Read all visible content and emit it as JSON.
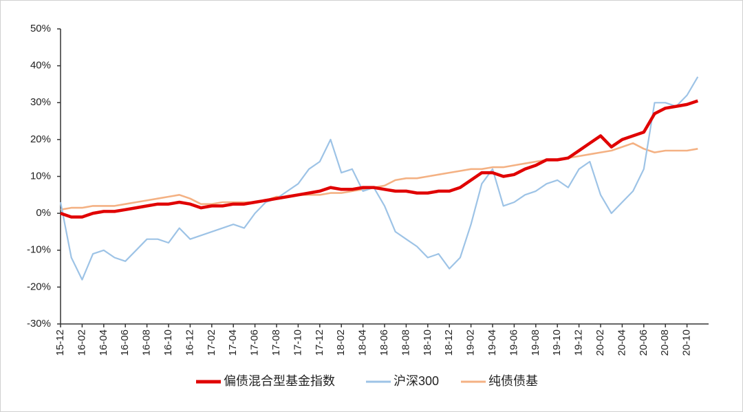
{
  "chart_data": {
    "type": "line",
    "categories": [
      "15-12",
      null,
      "16-02",
      null,
      "16-04",
      null,
      "16-06",
      null,
      "16-08",
      null,
      "16-10",
      null,
      "16-12",
      null,
      "17-02",
      null,
      "17-04",
      null,
      "17-06",
      null,
      "17-08",
      null,
      "17-10",
      null,
      "17-12",
      null,
      "18-02",
      null,
      "18-04",
      null,
      "18-06",
      null,
      "18-08",
      null,
      "18-10",
      null,
      "18-12",
      null,
      "19-02",
      null,
      "19-04",
      null,
      "19-06",
      null,
      "19-08",
      null,
      "19-10",
      null,
      "19-12",
      null,
      "20-02",
      null,
      "20-04",
      null,
      "20-06",
      null,
      "20-08",
      null,
      "20-10",
      null
    ],
    "series": [
      {
        "name": "偏债混合型基金指数",
        "color": "#e00000",
        "values": [
          0,
          -1,
          -1,
          0,
          0.5,
          0.5,
          1,
          1.5,
          2,
          2.5,
          2.5,
          3,
          2.5,
          1.5,
          2,
          2,
          2.5,
          2.5,
          3,
          3.5,
          4,
          4.5,
          5,
          5.5,
          6,
          7,
          6.5,
          6.5,
          7,
          7,
          6.5,
          6,
          6,
          5.5,
          5.5,
          6,
          6,
          7,
          9,
          11,
          11,
          10,
          10.5,
          12,
          13,
          14.5,
          14.5,
          15,
          17,
          19,
          21,
          18,
          20,
          21,
          22,
          27,
          28.5,
          29,
          29.5,
          30.5
        ]
      },
      {
        "name": "沪深300",
        "color": "#9dc3e6",
        "values": [
          3,
          -12,
          -18,
          -11,
          -10,
          -12,
          -13,
          -10,
          -7,
          -7,
          -8,
          -4,
          -7,
          -6,
          -5,
          -4,
          -3,
          -4,
          0,
          3,
          4,
          6,
          8,
          12,
          14,
          20,
          11,
          12,
          6,
          7,
          2,
          -5,
          -7,
          -9,
          -12,
          -11,
          -15,
          -12,
          -3,
          8,
          12,
          2,
          3,
          5,
          6,
          8,
          9,
          7,
          12,
          14,
          5,
          0,
          3,
          6,
          12,
          30,
          30,
          29,
          32,
          37
        ]
      },
      {
        "name": "纯债债基",
        "color": "#f4b183",
        "values": [
          1,
          1.5,
          1.5,
          2,
          2,
          2,
          2.5,
          3,
          3.5,
          4,
          4.5,
          5,
          4,
          2.5,
          2.5,
          3,
          3,
          3,
          3,
          3.5,
          4.5,
          4.5,
          5,
          5,
          5,
          5.5,
          5.5,
          6,
          6.5,
          7,
          7.5,
          9,
          9.5,
          9.5,
          10,
          10.5,
          11,
          11.5,
          12,
          12,
          12.5,
          12.5,
          13,
          13.5,
          14,
          14.5,
          14.5,
          15,
          15.5,
          16,
          16.5,
          17,
          18,
          19,
          17.5,
          16.5,
          17,
          17,
          17,
          17.5
        ]
      }
    ],
    "ylim": [
      -30,
      50
    ],
    "yticks": [
      {
        "value": -30,
        "label": "-30%"
      },
      {
        "value": -20,
        "label": "-20%"
      },
      {
        "value": -10,
        "label": "-10%"
      },
      {
        "value": 0,
        "label": "0%"
      },
      {
        "value": 10,
        "label": "10%"
      },
      {
        "value": 20,
        "label": "20%"
      },
      {
        "value": 30,
        "label": "30%"
      },
      {
        "value": 40,
        "label": "40%"
      },
      {
        "value": 50,
        "label": "50%"
      }
    ]
  }
}
